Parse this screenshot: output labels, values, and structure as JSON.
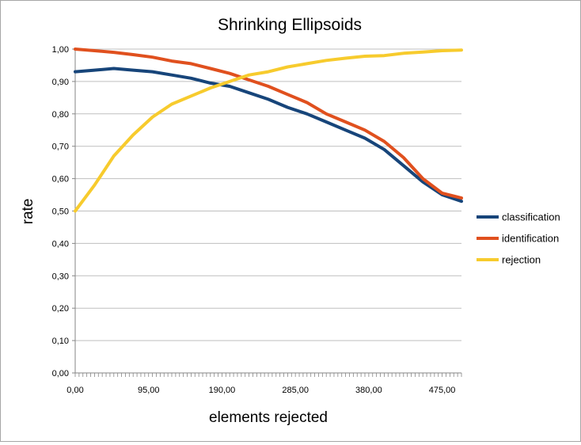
{
  "chart_data": {
    "type": "line",
    "title": "Shrinking Ellipsoids",
    "xlabel": "elements rejected",
    "ylabel": "rate",
    "xlim": [
      0,
      500
    ],
    "ylim": [
      0,
      1
    ],
    "x_ticks": [
      0,
      95,
      190,
      285,
      380,
      475
    ],
    "x_tick_labels": [
      "0,00",
      "95,00",
      "190,00",
      "285,00",
      "380,00",
      "475,00"
    ],
    "y_ticks": [
      0,
      0.1,
      0.2,
      0.3,
      0.4,
      0.5,
      0.6,
      0.7,
      0.8,
      0.9,
      1.0
    ],
    "y_tick_labels": [
      "0,00",
      "0,10",
      "0,20",
      "0,30",
      "0,40",
      "0,50",
      "0,60",
      "0,70",
      "0,80",
      "0,90",
      "1,00"
    ],
    "grid": "horizontal",
    "legend": "right",
    "x": [
      0,
      25,
      50,
      75,
      100,
      125,
      150,
      175,
      200,
      225,
      250,
      275,
      300,
      325,
      350,
      375,
      400,
      425,
      450,
      475,
      500
    ],
    "series": [
      {
        "name": "classification",
        "color": "#17457a",
        "values": [
          0.93,
          0.935,
          0.94,
          0.935,
          0.93,
          0.92,
          0.91,
          0.895,
          0.885,
          0.865,
          0.845,
          0.82,
          0.8,
          0.775,
          0.75,
          0.725,
          0.69,
          0.64,
          0.59,
          0.55,
          0.53
        ]
      },
      {
        "name": "identification",
        "color": "#e0501e",
        "values": [
          1.0,
          0.995,
          0.99,
          0.983,
          0.975,
          0.963,
          0.955,
          0.94,
          0.925,
          0.905,
          0.885,
          0.86,
          0.835,
          0.8,
          0.775,
          0.75,
          0.715,
          0.665,
          0.6,
          0.555,
          0.54
        ]
      },
      {
        "name": "rejection",
        "color": "#f7cb2d",
        "values": [
          0.5,
          0.58,
          0.67,
          0.735,
          0.79,
          0.83,
          0.855,
          0.88,
          0.9,
          0.92,
          0.93,
          0.945,
          0.955,
          0.965,
          0.972,
          0.978,
          0.98,
          0.987,
          0.991,
          0.995,
          0.997
        ]
      }
    ]
  }
}
